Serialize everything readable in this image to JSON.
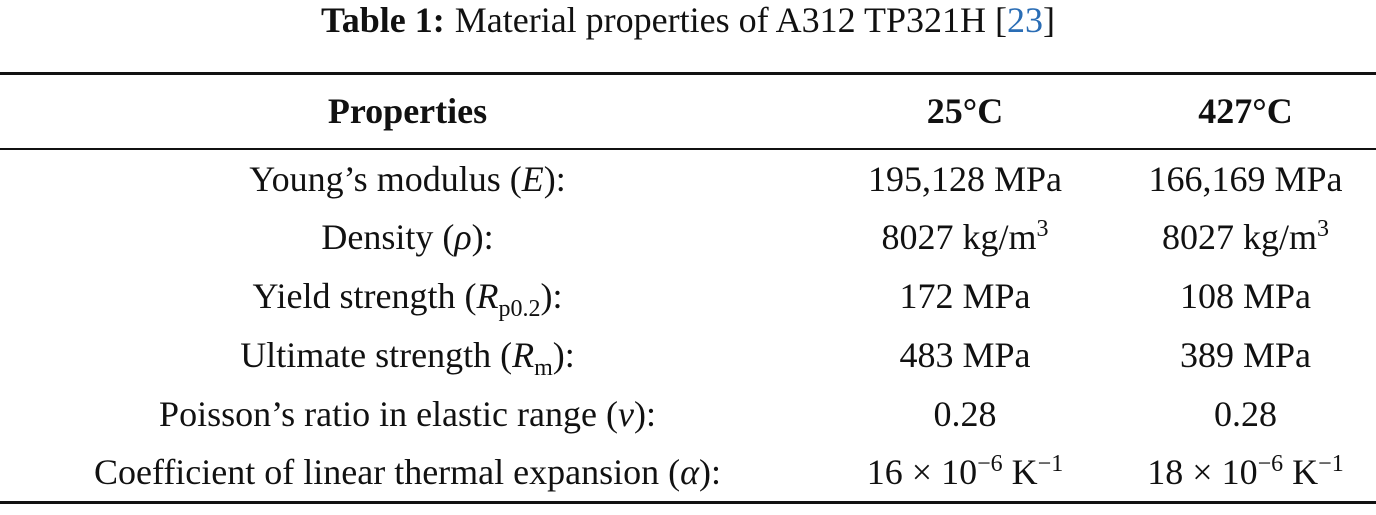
{
  "caption": {
    "label": "Table 1:",
    "text": "Material properties of A312 TP321H [",
    "ref": "23",
    "close": "]"
  },
  "table": {
    "header": [
      "Properties",
      "25°C",
      "427°C"
    ],
    "rows": [
      [
        [
          {
            "text": "Young’s modulus ("
          },
          {
            "text": "E",
            "format": "italic"
          },
          {
            "text": "):"
          }
        ],
        [
          {
            "text": "195,128 MPa"
          }
        ],
        [
          {
            "text": "166,169 MPa"
          }
        ]
      ],
      [
        [
          {
            "text": "Density ("
          },
          {
            "text": "ρ",
            "format": "italic"
          },
          {
            "text": "):"
          }
        ],
        [
          {
            "text": "8027 kg/m"
          },
          {
            "text": "3",
            "format": "sup"
          }
        ],
        [
          {
            "text": "8027 kg/m"
          },
          {
            "text": "3",
            "format": "sup"
          }
        ]
      ],
      [
        [
          {
            "text": "Yield strength ("
          },
          {
            "text": "R",
            "format": "italic"
          },
          {
            "text": "p0.2",
            "format": "sub"
          },
          {
            "text": "):"
          }
        ],
        [
          {
            "text": "172 MPa"
          }
        ],
        [
          {
            "text": "108 MPa"
          }
        ]
      ],
      [
        [
          {
            "text": "Ultimate strength ("
          },
          {
            "text": "R",
            "format": "italic"
          },
          {
            "text": "m",
            "format": "sub"
          },
          {
            "text": "):"
          }
        ],
        [
          {
            "text": "483 MPa"
          }
        ],
        [
          {
            "text": "389 MPa"
          }
        ]
      ],
      [
        [
          {
            "text": "Poisson’s ratio in elastic range ("
          },
          {
            "text": "ν",
            "format": "italic"
          },
          {
            "text": "):"
          }
        ],
        [
          {
            "text": "0.28"
          }
        ],
        [
          {
            "text": "0.28"
          }
        ]
      ],
      [
        [
          {
            "text": "Coefficient of linear thermal expansion ("
          },
          {
            "text": "α",
            "format": "italic"
          },
          {
            "text": "):"
          }
        ],
        [
          {
            "text": "16 × 10"
          },
          {
            "text": "−6",
            "format": "sup"
          },
          {
            "text": " K"
          },
          {
            "text": "−1",
            "format": "sup"
          }
        ],
        [
          {
            "text": "18 × 10"
          },
          {
            "text": "−6",
            "format": "sup"
          },
          {
            "text": " K"
          },
          {
            "text": "−1",
            "format": "sup"
          }
        ]
      ]
    ]
  }
}
